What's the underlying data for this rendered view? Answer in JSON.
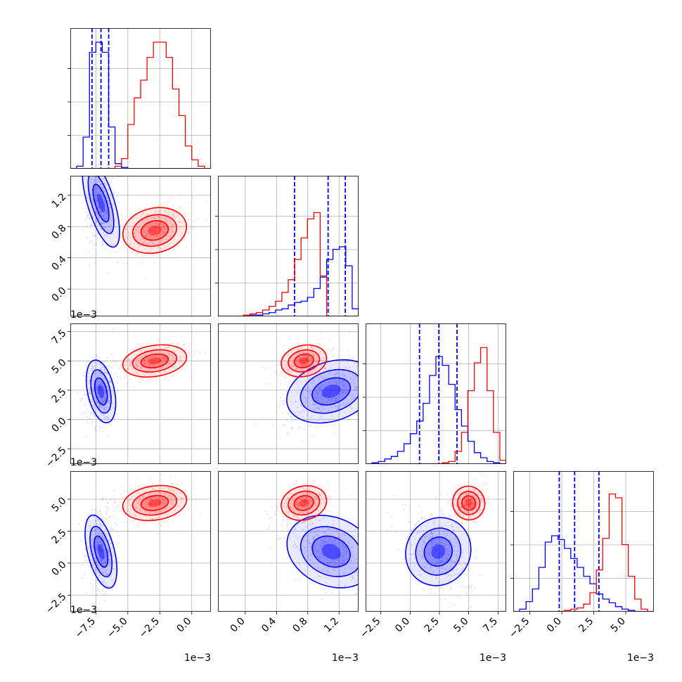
{
  "chart_data": {
    "type": "scatter",
    "title": "",
    "colors": {
      "series_a": "#0000ff",
      "series_b": "#ff0000"
    },
    "grid": true,
    "offset_label": "1e−3",
    "params": [
      {
        "range": [
          -9.5,
          1.5
        ],
        "ticks": [
          -7.5,
          -5.0,
          -2.5,
          0.0
        ],
        "tick_labels": [
          "−7.5",
          "−5.0",
          "−2.5",
          "0.0"
        ]
      },
      {
        "range": [
          -0.35,
          1.45
        ],
        "ticks": [
          0.0,
          0.4,
          0.8,
          1.2
        ],
        "tick_labels": [
          "0.0",
          "0.4",
          "0.8",
          "1.2"
        ]
      },
      {
        "range": [
          -3.8,
          8.2
        ],
        "ticks": [
          -2.5,
          0.0,
          2.5,
          5.0,
          7.5
        ],
        "tick_labels": [
          "−2.5",
          "0.0",
          "2.5",
          "5.0",
          "7.5"
        ]
      },
      {
        "range": [
          -3.8,
          7.2
        ],
        "ticks": [
          -2.5,
          0.0,
          2.5,
          5.0
        ],
        "tick_labels": [
          "−2.5",
          "0.0",
          "2.5",
          "5.0"
        ]
      }
    ],
    "series": [
      {
        "color": "#0000ff",
        "mean": [
          -7.1,
          1.1,
          2.4,
          0.9
        ],
        "std": [
          0.5,
          0.28,
          1.3,
          1.4
        ],
        "quantiles": [
          [
            -7.8,
            -7.1,
            -6.5
          ],
          [
            0.63,
            1.06,
            1.28
          ],
          [
            0.8,
            2.45,
            4.0
          ],
          [
            -0.2,
            1.0,
            2.9
          ]
        ],
        "hist": [
          [
            0,
            0.02,
            0.25,
            0.92,
            1.0,
            0.92,
            0.33,
            0.04,
            0.01,
            0,
            0,
            0,
            0,
            0,
            0,
            0,
            0,
            0,
            0,
            0,
            0,
            0
          ],
          [
            0,
            0,
            0,
            0,
            0,
            0.01,
            0.01,
            0.02,
            0.03,
            0.05,
            0.06,
            0.09,
            0.11,
            0.12,
            0.15,
            0.22,
            0.31,
            0.45,
            0.53,
            0.55,
            0.4,
            0.06
          ],
          [
            0,
            0.01,
            0.02,
            0.04,
            0.06,
            0.1,
            0.16,
            0.24,
            0.34,
            0.48,
            0.7,
            0.85,
            0.78,
            0.63,
            0.43,
            0.3,
            0.18,
            0.09,
            0.05,
            0.02,
            0.01,
            0
          ],
          [
            0,
            0.02,
            0.08,
            0.18,
            0.35,
            0.55,
            0.6,
            0.57,
            0.5,
            0.42,
            0.35,
            0.28,
            0.22,
            0.14,
            0.1,
            0.07,
            0.04,
            0.02,
            0.01,
            0,
            0,
            0
          ]
        ]
      },
      {
        "color": "#ff0000",
        "mean": [
          -2.9,
          0.75,
          5.0,
          4.7
        ],
        "std": [
          1.2,
          0.14,
          0.65,
          0.65
        ],
        "quantiles": [],
        "hist": [
          [
            0,
            0,
            0,
            0,
            0,
            0,
            0,
            0.02,
            0.08,
            0.35,
            0.56,
            0.7,
            0.88,
            1.0,
            1.0,
            0.88,
            0.63,
            0.42,
            0.18,
            0.07,
            0.02,
            0
          ],
          [
            0,
            0,
            0,
            0,
            0.01,
            0.02,
            0.03,
            0.05,
            0.08,
            0.12,
            0.19,
            0.29,
            0.45,
            0.62,
            0.77,
            0.82,
            0.32,
            0,
            0,
            0,
            0,
            0
          ],
          [
            0,
            0,
            0,
            0,
            0,
            0,
            0,
            0,
            0,
            0,
            0,
            0,
            0.01,
            0.02,
            0.1,
            0.25,
            0.58,
            0.8,
            0.92,
            0.58,
            0.25,
            0.03
          ],
          [
            0,
            0,
            0,
            0,
            0,
            0,
            0,
            0,
            0.01,
            0.02,
            0.03,
            0.06,
            0.15,
            0.33,
            0.58,
            0.93,
            0.9,
            0.53,
            0.28,
            0.1,
            0.02,
            0
          ]
        ]
      }
    ]
  }
}
